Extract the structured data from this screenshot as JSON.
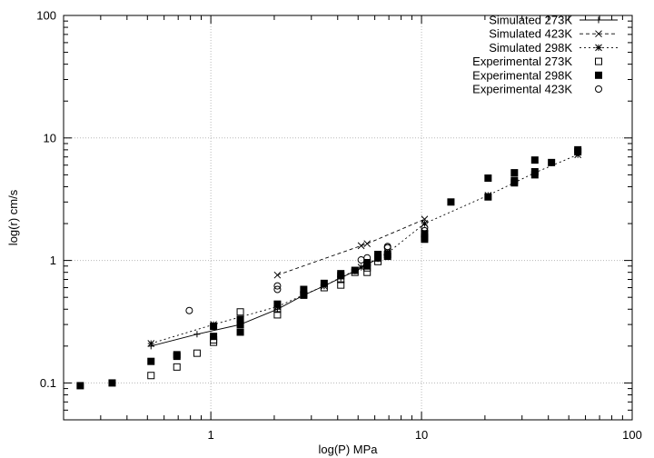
{
  "chart_data": {
    "type": "scatter",
    "title": "",
    "xlabel": "log(P) MPa",
    "ylabel": "log(r) cm/s",
    "xscale": "log",
    "yscale": "log",
    "xlim": [
      0.2,
      100
    ],
    "ylim": [
      0.05,
      100
    ],
    "xticks": [
      {
        "v": 1,
        "label": "1"
      },
      {
        "v": 10,
        "label": "10"
      },
      {
        "v": 100,
        "label": "100"
      }
    ],
    "yticks": [
      {
        "v": 0.1,
        "label": "0.1"
      },
      {
        "v": 1,
        "label": "1"
      },
      {
        "v": 10,
        "label": "10"
      },
      {
        "v": 100,
        "label": "100"
      }
    ],
    "grid": true,
    "legend_position": "top-right",
    "series": [
      {
        "name": "Simulated 273K",
        "kind": "line",
        "marker": "plus",
        "dash": "solid",
        "x": [
          0.52,
          0.86,
          1.38,
          2.07,
          2.76,
          3.45,
          4.14,
          4.83,
          5.52,
          6.21
        ],
        "y": [
          0.2,
          0.25,
          0.3,
          0.4,
          0.52,
          0.62,
          0.72,
          0.82,
          0.93,
          1.03
        ]
      },
      {
        "name": "Simulated 423K",
        "kind": "line",
        "marker": "x",
        "dash": "dashed",
        "x": [
          2.07,
          5.17,
          5.52,
          10.34
        ],
        "y": [
          0.76,
          1.32,
          1.37,
          2.17
        ]
      },
      {
        "name": "Simulated 298K",
        "kind": "line",
        "marker": "star",
        "dash": "dotted",
        "x": [
          0.52,
          1.03,
          2.07,
          3.45,
          5.17,
          6.9,
          10.34,
          20.7,
          34.5,
          55.2
        ],
        "y": [
          0.21,
          0.3,
          0.42,
          0.62,
          0.88,
          1.15,
          2.0,
          3.4,
          5.2,
          7.3
        ]
      },
      {
        "name": "Experimental 273K",
        "kind": "points",
        "marker": "open-square",
        "x": [
          0.52,
          0.69,
          0.86,
          1.03,
          1.03,
          1.38,
          2.07,
          2.07,
          2.76,
          3.45,
          4.14,
          4.14,
          4.83,
          5.52,
          5.52,
          6.21,
          6.21
        ],
        "y": [
          0.115,
          0.135,
          0.175,
          0.215,
          0.225,
          0.38,
          0.36,
          0.4,
          0.53,
          0.6,
          0.63,
          0.7,
          0.8,
          0.8,
          0.87,
          0.98,
          1.05
        ]
      },
      {
        "name": "Experimental 298K",
        "kind": "points",
        "marker": "filled-square",
        "x": [
          0.24,
          0.34,
          0.52,
          0.69,
          0.69,
          1.03,
          1.03,
          1.38,
          1.38,
          1.38,
          2.07,
          2.76,
          2.76,
          3.45,
          4.14,
          4.14,
          4.83,
          5.52,
          5.52,
          6.21,
          6.21,
          6.9,
          6.9,
          10.34,
          10.34,
          10.34,
          13.79,
          20.7,
          20.7,
          27.6,
          27.6,
          27.6,
          34.5,
          34.5,
          34.5,
          41.4,
          55.2,
          55.2
        ],
        "y": [
          0.095,
          0.1,
          0.15,
          0.165,
          0.17,
          0.24,
          0.29,
          0.26,
          0.3,
          0.33,
          0.44,
          0.52,
          0.58,
          0.65,
          0.75,
          0.78,
          0.83,
          0.91,
          0.96,
          1.05,
          1.12,
          1.08,
          1.12,
          1.49,
          1.55,
          1.65,
          3.0,
          3.3,
          4.7,
          4.3,
          4.5,
          5.2,
          5.0,
          5.3,
          6.6,
          6.3,
          7.7,
          8.0
        ]
      },
      {
        "name": "Experimental 423K",
        "kind": "points",
        "marker": "open-circle",
        "x": [
          0.79,
          2.07,
          2.07,
          5.17,
          5.52,
          6.21,
          6.9,
          6.9,
          10.34,
          10.34
        ],
        "y": [
          0.39,
          0.58,
          0.62,
          1.01,
          1.05,
          1.12,
          1.27,
          1.3,
          1.75,
          1.85
        ]
      }
    ]
  }
}
